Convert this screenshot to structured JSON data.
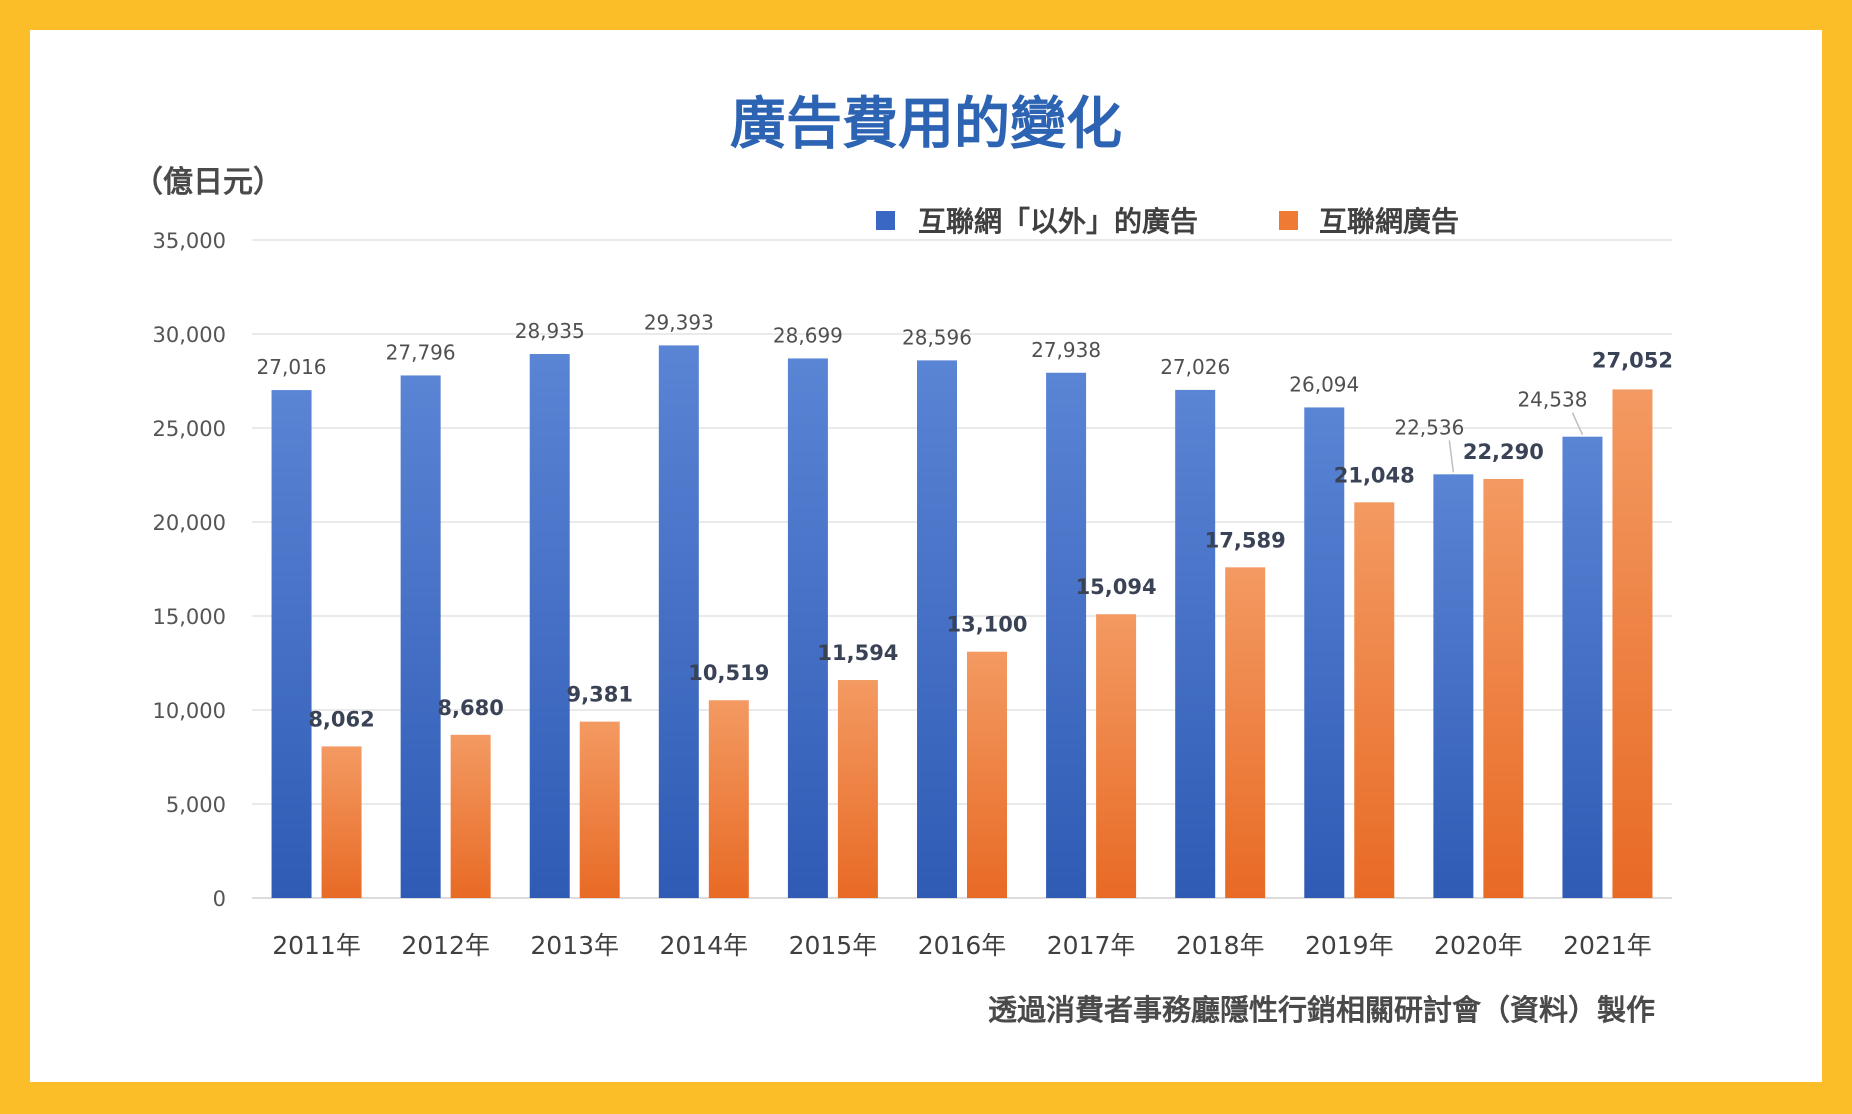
{
  "chart_data": {
    "type": "bar",
    "title": "廣告費用的變化",
    "ylabel": "（億日元）",
    "ylim": [
      0,
      35000
    ],
    "yticks": [
      0,
      5000,
      10000,
      15000,
      20000,
      25000,
      30000,
      35000
    ],
    "ytick_labels": [
      "0",
      "5,000",
      "10,000",
      "15,000",
      "20,000",
      "25,000",
      "30,000",
      "35,000"
    ],
    "grid": true,
    "legend_position": "top-right",
    "categories": [
      "2011年",
      "2012年",
      "2013年",
      "2014年",
      "2015年",
      "2016年",
      "2017年",
      "2018年",
      "2019年",
      "2020年",
      "2021年"
    ],
    "series": [
      {
        "name": "互聯網「以外」的廣告",
        "color": "#3a67c4",
        "values": [
          27016,
          27796,
          28935,
          29393,
          28699,
          28596,
          27938,
          27026,
          26094,
          22536,
          24538
        ],
        "labels": [
          "27,016",
          "27,796",
          "28,935",
          "29,393",
          "28,699",
          "28,596",
          "27,938",
          "27,026",
          "26,094",
          "22,536",
          "24,538"
        ]
      },
      {
        "name": "互聯網廣告",
        "color": "#ef7a34",
        "values": [
          8062,
          8680,
          9381,
          10519,
          11594,
          13100,
          15094,
          17589,
          21048,
          22290,
          27052
        ],
        "labels": [
          "8,062",
          "8,680",
          "9,381",
          "10,519",
          "11,594",
          "13,100",
          "15,094",
          "17,589",
          "21,048",
          "22,290",
          "27,052"
        ]
      }
    ],
    "source_note": "透過消費者事務廳隱性行銷相關研討會（資料）製作"
  }
}
